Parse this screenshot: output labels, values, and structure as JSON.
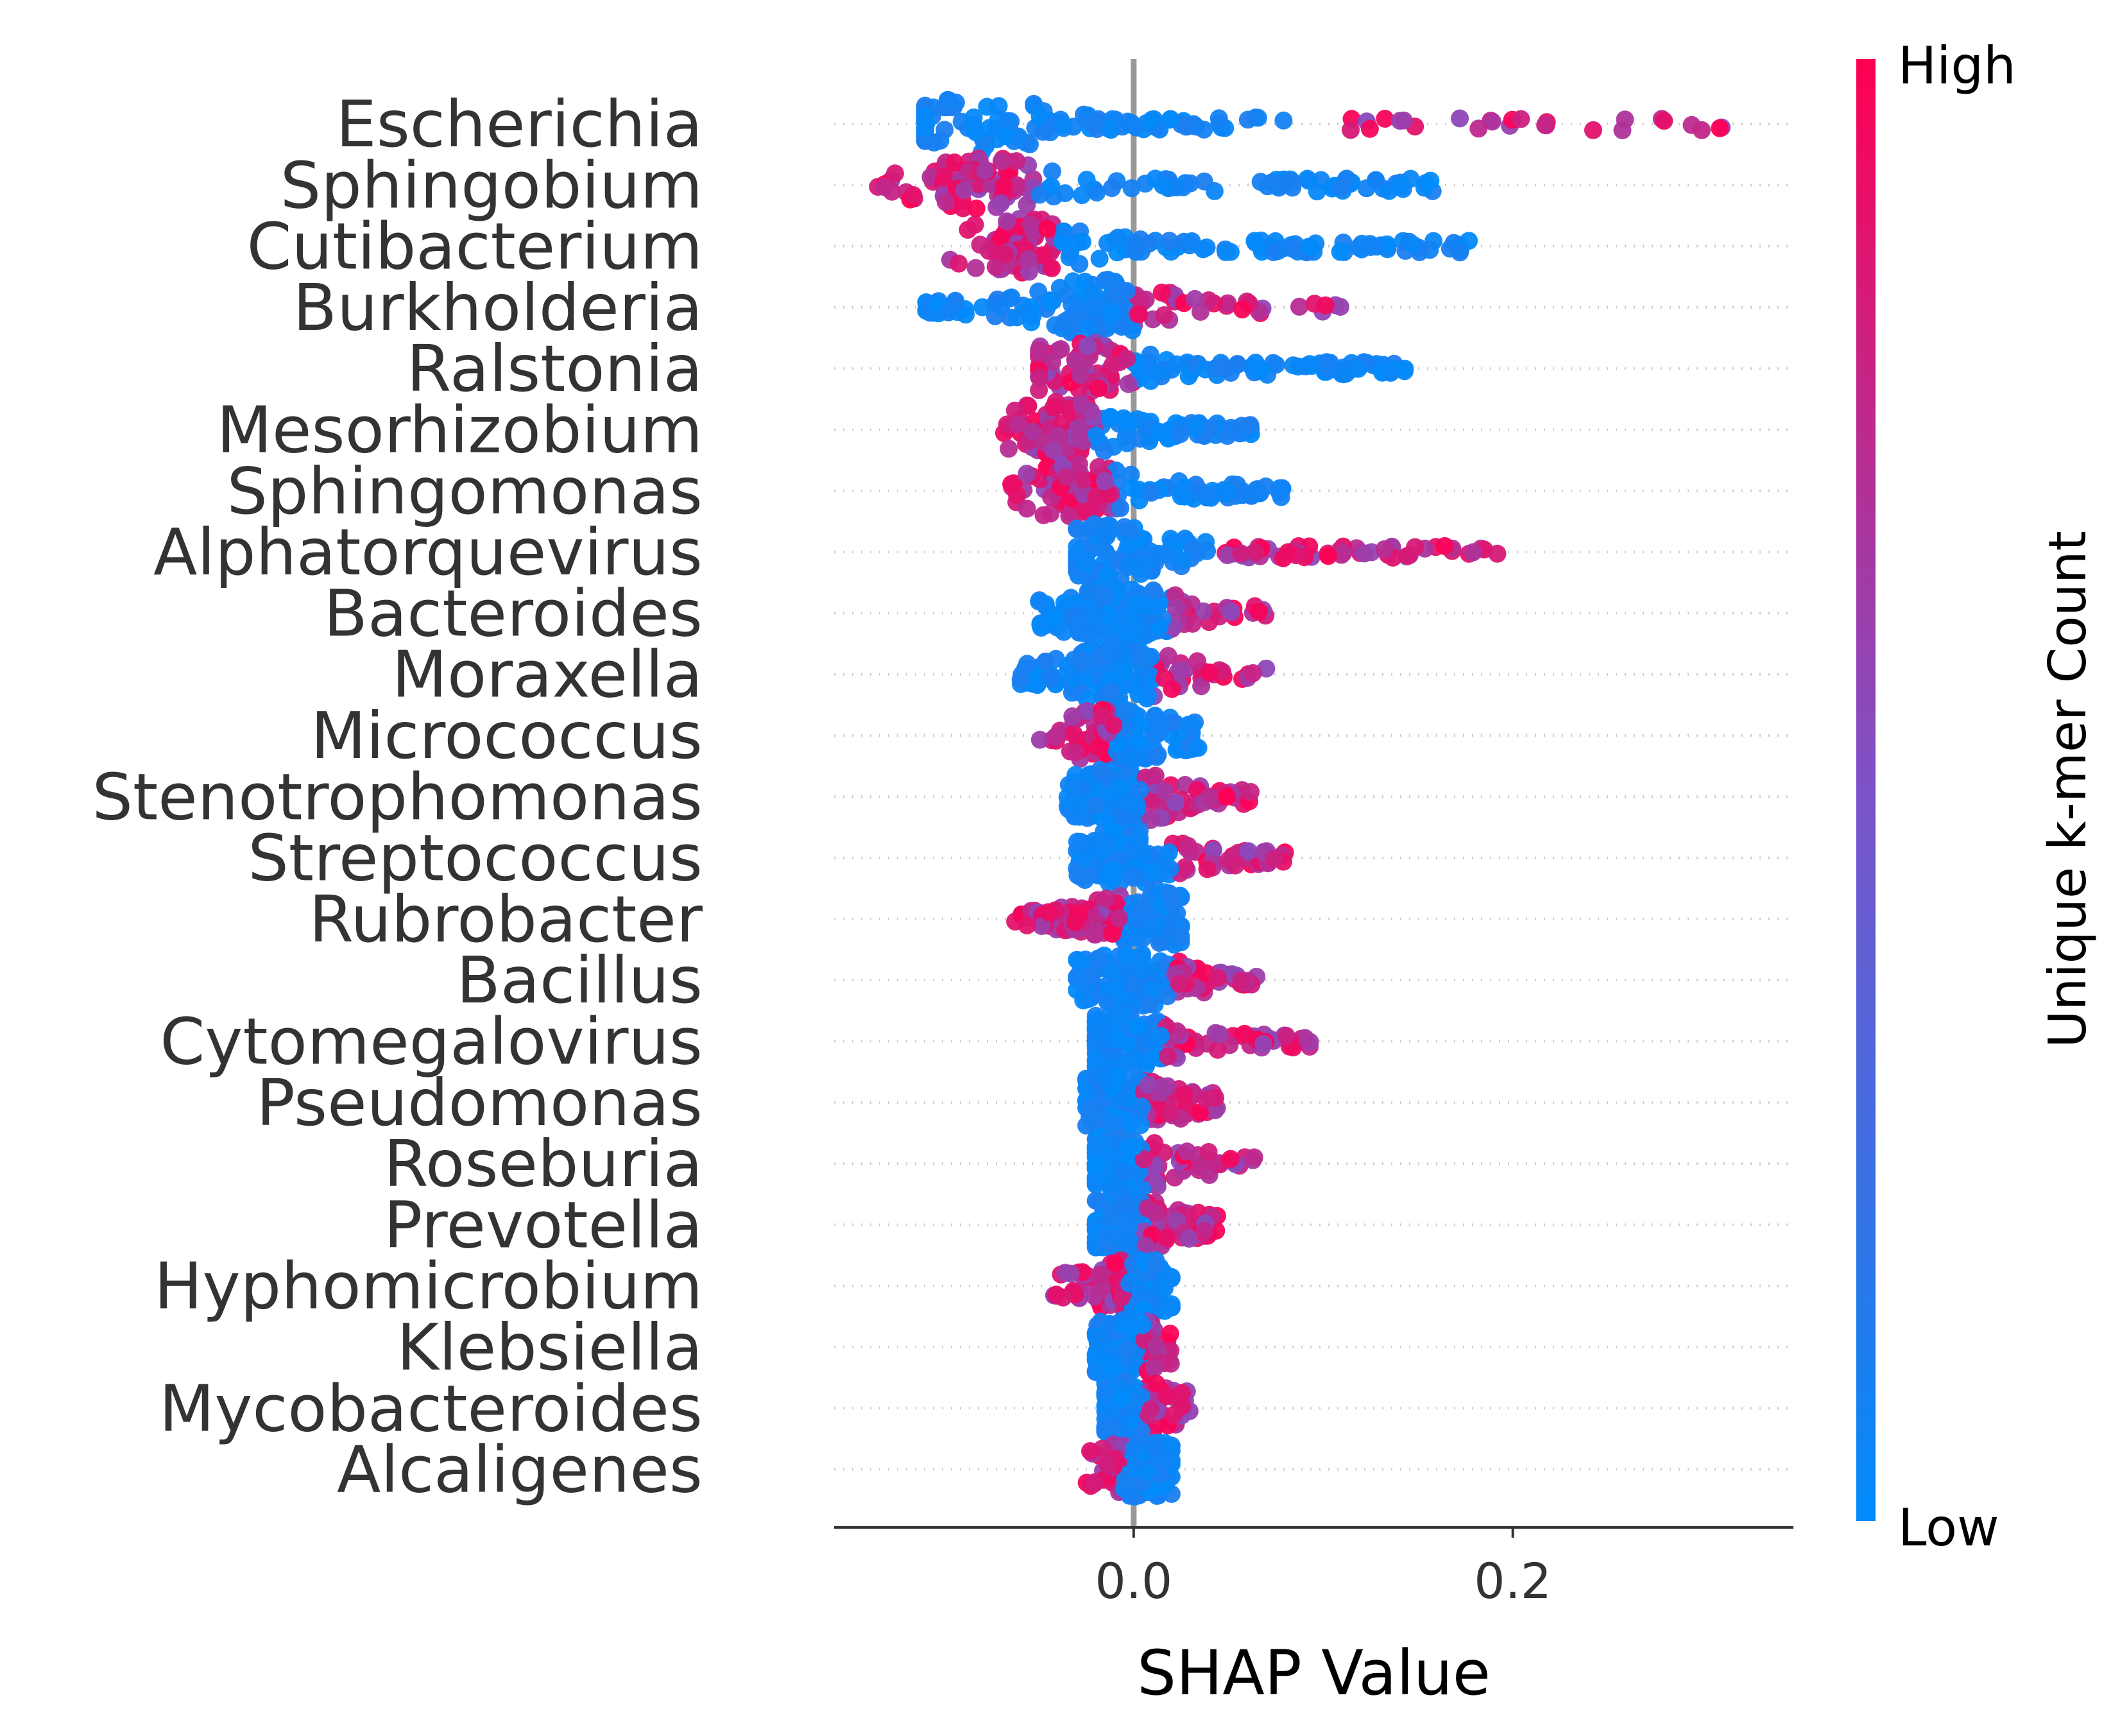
{
  "chart_data": {
    "type": "scatter",
    "subtype": "shap-beeswarm",
    "title": "",
    "xlabel": "SHAP Value",
    "xlim": [
      -0.158,
      0.348
    ],
    "xticks": [
      0.0,
      0.2
    ],
    "xtick_labels": [
      "0.0",
      "0.2"
    ],
    "zero_line": 0,
    "grid": "dotted horizontal guides per feature",
    "colorbar": {
      "label": "Unique k-mer Count",
      "high_label": "High",
      "low_label": "Low",
      "low_color": "#008bfb",
      "mid_color": "#7c52c8",
      "high_color": "#ff0052",
      "placement": "right"
    },
    "features": [
      {
        "name": "Escherichia",
        "min": -0.11,
        "max": 0.33,
        "split": 0.1,
        "high_side": "positive",
        "neg_mass": 0.55,
        "center": -0.08
      },
      {
        "name": "Sphingobium",
        "min": -0.14,
        "max": 0.16,
        "split": -0.05,
        "high_side": "negative",
        "neg_mass": 0.35,
        "center": -0.08
      },
      {
        "name": "Cutibacterium",
        "min": -0.1,
        "max": 0.18,
        "split": -0.04,
        "high_side": "negative",
        "neg_mass": 0.4,
        "center": -0.06
      },
      {
        "name": "Burkholderia",
        "min": -0.11,
        "max": 0.11,
        "split": 0.0,
        "high_side": "positive",
        "neg_mass": 0.4,
        "center": -0.02
      },
      {
        "name": "Ralstonia",
        "min": -0.05,
        "max": 0.145,
        "split": 0.0,
        "high_side": "negative",
        "neg_mass": 0.35,
        "center": -0.03
      },
      {
        "name": "Mesorhizobium",
        "min": -0.07,
        "max": 0.065,
        "split": -0.02,
        "high_side": "negative",
        "neg_mass": 0.4,
        "center": -0.04
      },
      {
        "name": "Sphingomonas",
        "min": -0.07,
        "max": 0.08,
        "split": -0.01,
        "high_side": "negative",
        "neg_mass": 0.45,
        "center": -0.03
      },
      {
        "name": "Alphatorquevirus",
        "min": -0.03,
        "max": 0.195,
        "split": 0.04,
        "high_side": "positive",
        "neg_mass": 0.4,
        "center": -0.015
      },
      {
        "name": "Bacteroides",
        "min": -0.05,
        "max": 0.07,
        "split": 0.02,
        "high_side": "positive",
        "neg_mass": 0.5,
        "center": -0.01
      },
      {
        "name": "Moraxella",
        "min": -0.06,
        "max": 0.08,
        "split": 0.01,
        "high_side": "positive",
        "neg_mass": 0.5,
        "center": -0.01
      },
      {
        "name": "Micrococcus",
        "min": -0.05,
        "max": 0.035,
        "split": -0.01,
        "high_side": "negative",
        "neg_mass": 0.45,
        "center": -0.01
      },
      {
        "name": "Stenotrophomonas",
        "min": -0.035,
        "max": 0.065,
        "split": 0.005,
        "high_side": "positive",
        "neg_mass": 0.45,
        "center": -0.01
      },
      {
        "name": "Streptococcus",
        "min": -0.03,
        "max": 0.08,
        "split": 0.02,
        "high_side": "positive",
        "neg_mass": 0.5,
        "center": -0.005
      },
      {
        "name": "Rubrobacter",
        "min": -0.065,
        "max": 0.025,
        "split": -0.005,
        "high_side": "negative",
        "neg_mass": 0.35,
        "center": 0.01
      },
      {
        "name": "Bacillus",
        "min": -0.03,
        "max": 0.065,
        "split": 0.02,
        "high_side": "positive",
        "neg_mass": 0.5,
        "center": -0.005
      },
      {
        "name": "Cytomegalovirus",
        "min": -0.02,
        "max": 0.095,
        "split": 0.015,
        "high_side": "positive",
        "neg_mass": 0.5,
        "center": -0.008
      },
      {
        "name": "Pseudomonas",
        "min": -0.025,
        "max": 0.045,
        "split": 0.005,
        "high_side": "positive",
        "neg_mass": 0.5,
        "center": -0.01
      },
      {
        "name": "Roseburia",
        "min": -0.02,
        "max": 0.065,
        "split": 0.005,
        "high_side": "positive",
        "neg_mass": 0.5,
        "center": -0.008
      },
      {
        "name": "Prevotella",
        "min": -0.02,
        "max": 0.045,
        "split": 0.005,
        "high_side": "positive",
        "neg_mass": 0.5,
        "center": -0.008
      },
      {
        "name": "Hyphomicrobium",
        "min": -0.045,
        "max": 0.02,
        "split": -0.005,
        "high_side": "negative",
        "neg_mass": 0.4,
        "center": 0.005
      },
      {
        "name": "Klebsiella",
        "min": -0.02,
        "max": 0.02,
        "split": 0.005,
        "high_side": "positive",
        "neg_mass": 0.55,
        "center": -0.005
      },
      {
        "name": "Mycobacteroides",
        "min": -0.015,
        "max": 0.03,
        "split": 0.005,
        "high_side": "positive",
        "neg_mass": 0.55,
        "center": -0.005
      },
      {
        "name": "Alcaligenes",
        "min": -0.025,
        "max": 0.02,
        "split": -0.005,
        "high_side": "negative",
        "neg_mass": 0.45,
        "center": 0.005
      }
    ]
  }
}
